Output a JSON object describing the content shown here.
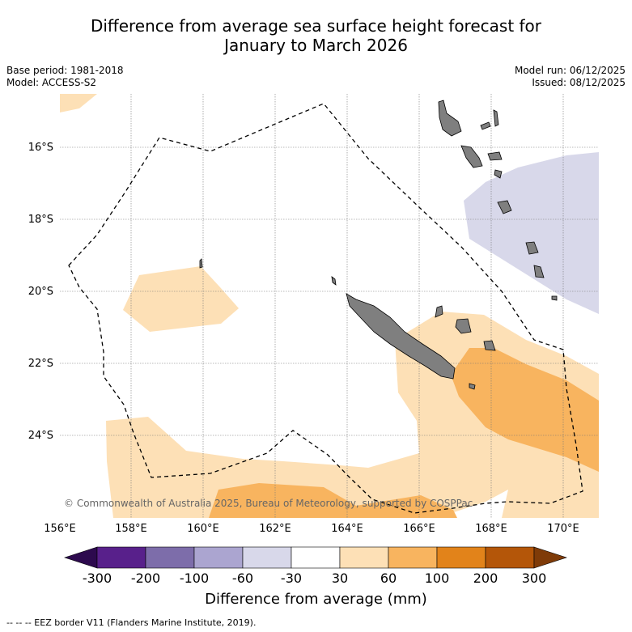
{
  "title": {
    "line1": "Difference from average sea surface height forecast for",
    "line2": "January to March 2026"
  },
  "meta": {
    "base_period": "Base period: 1981-2018",
    "model": "Model: ACCESS-S2",
    "model_run": "Model run: 06/12/2025",
    "issued": "Issued: 08/12/2025"
  },
  "map": {
    "lat_labels": [
      "16°S",
      "18°S",
      "20°S",
      "22°S",
      "24°S"
    ],
    "lon_labels": [
      "156°E",
      "158°E",
      "160°E",
      "162°E",
      "164°E",
      "166°E",
      "168°E",
      "170°E"
    ],
    "copyright": "© Commonwealth of Australia 2025, Bureau of Meteorology, supported by COSPPac",
    "colors": {
      "land": "#7f7f7f",
      "anom_30_60": "#fde0b6",
      "anom_60_100": "#f8b45f",
      "anom_neg_60_30": "#d8d8ea"
    }
  },
  "colorbar": {
    "ticks": [
      "-300",
      "-200",
      "-100",
      "-60",
      "-30",
      "30",
      "60",
      "100",
      "200",
      "300"
    ],
    "colors": [
      "#2d0a4e",
      "#58208b",
      "#7d6daa",
      "#aba5d0",
      "#d8d8ea",
      "#ffffff",
      "#fde0b6",
      "#f8b45f",
      "#e2831a",
      "#b45609",
      "#7f3b08"
    ],
    "label": "Difference from average (mm)"
  },
  "footer": "--  --  -- EEZ border V11 (Flanders Marine Institute, 2019)."
}
